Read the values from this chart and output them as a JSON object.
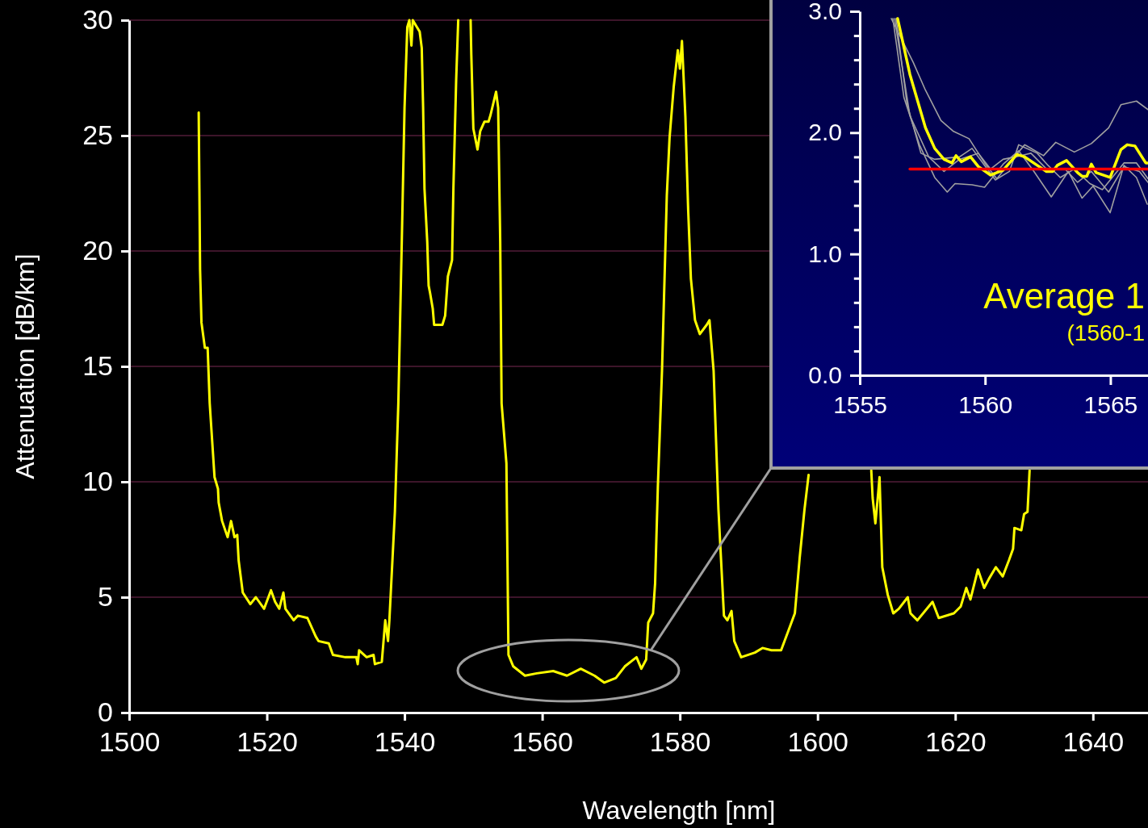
{
  "chart_data": [
    {
      "type": "line",
      "xlabel": "Wavelength [nm]",
      "ylabel": "Attenuation [dB/km]",
      "xlim": [
        1500,
        1648
      ],
      "ylim": [
        0,
        30
      ],
      "xticks": [
        1500,
        1520,
        1540,
        1560,
        1580,
        1600,
        1620,
        1640
      ],
      "yticks": [
        0,
        5,
        10,
        15,
        20,
        25,
        30
      ],
      "grid": "y",
      "x": [
        1510.1,
        1510.2,
        1510.3,
        1510.5,
        1511.0,
        1511.4,
        1511.7,
        1512.4,
        1512.9,
        1513.0,
        1513.5,
        1514.3,
        1514.8,
        1515.3,
        1515.7,
        1515.9,
        1516.5,
        1517.6,
        1518.4,
        1519.6,
        1520.6,
        1521.2,
        1521.8,
        1522.4,
        1522.7,
        1523.9,
        1524.5,
        1525.9,
        1527.1,
        1527.5,
        1529.0,
        1529.6,
        1531.4,
        1533.0,
        1533.2,
        1533.4,
        1534.5,
        1535.5,
        1535.7,
        1536.7,
        1537.2,
        1537.6,
        1537.8,
        1538.6,
        1539.1,
        1539.6,
        1540.0,
        1540.4,
        1540.7,
        1541.0,
        1541.2,
        1541.6,
        1542.2,
        1542.5,
        1542.7,
        1542.9,
        1543.3,
        1543.5,
        1543.7,
        1544.1,
        1544.3,
        1545.5,
        1545.9,
        1546.3,
        1546.9,
        1547.1,
        1547.5,
        1547.8,
        1548.7,
        1549.6,
        1549.7,
        1550.0,
        1550.6,
        1551.0,
        1551.6,
        1552.2,
        1552.5,
        1553.3,
        1553.6,
        1553.9,
        1554.1,
        1554.8,
        1555.1,
        1555.8,
        1557.5,
        1559.2,
        1561.6,
        1563.6,
        1565.6,
        1567.6,
        1569.0,
        1570.7,
        1572.0,
        1573.7,
        1574.4,
        1575.1,
        1575.4,
        1576.1,
        1576.4,
        1576.8,
        1577.4,
        1578.1,
        1578.5,
        1579.1,
        1579.7,
        1580.0,
        1580.3,
        1580.8,
        1581.2,
        1581.6,
        1582.2,
        1582.9,
        1583.9,
        1584.3,
        1584.9,
        1585.6,
        1586.4,
        1586.9,
        1587.5,
        1587.9,
        1588.9,
        1590.9,
        1592.0,
        1593.3,
        1594.7,
        1595.7,
        1596.7,
        1597.4,
        1598.1,
        1598.7,
        1603.0,
        1607.8,
        1608.0,
        1608.4,
        1608.8,
        1609.0,
        1609.4,
        1610.2,
        1611.0,
        1611.8,
        1613.1,
        1613.5,
        1614.5,
        1616.7,
        1617.6,
        1619.8,
        1620.8,
        1621.6,
        1622.2,
        1623.3,
        1624.2,
        1624.9,
        1625.9,
        1626.9,
        1627.8,
        1628.4,
        1628.6,
        1629.6,
        1630.0,
        1630.5,
        1630.8
      ],
      "series": [
        {
          "color": "#ffff00",
          "values": [
            26.0,
            22.7,
            19.2,
            16.9,
            15.8,
            15.8,
            13.4,
            10.2,
            9.7,
            9.1,
            8.3,
            7.6,
            8.3,
            7.6,
            7.7,
            6.6,
            5.2,
            4.7,
            5.0,
            4.5,
            5.3,
            4.8,
            4.5,
            5.2,
            4.5,
            4.0,
            4.2,
            4.1,
            3.3,
            3.1,
            3.0,
            2.5,
            2.4,
            2.4,
            2.1,
            2.7,
            2.4,
            2.5,
            2.1,
            2.2,
            4.0,
            3.1,
            4.0,
            8.7,
            13.4,
            20.4,
            26.2,
            29.7,
            30,
            28.9,
            30,
            29.8,
            29.5,
            28.8,
            26.2,
            22.7,
            20.4,
            18.5,
            18.2,
            17.5,
            16.8,
            16.8,
            17.2,
            18.9,
            19.6,
            22.7,
            27.4,
            30,
            null,
            30,
            28.5,
            25.3,
            24.4,
            25.2,
            25.6,
            25.6,
            25.9,
            26.9,
            26.2,
            20.4,
            13.4,
            10.8,
            2.5,
            2.0,
            1.6,
            1.7,
            1.8,
            1.6,
            1.9,
            1.6,
            1.3,
            1.5,
            2.0,
            2.4,
            1.9,
            2.3,
            3.9,
            4.3,
            5.6,
            9.8,
            14.8,
            22.4,
            24.9,
            27.1,
            28.7,
            27.9,
            29.1,
            25.8,
            21.8,
            18.8,
            17.0,
            16.4,
            16.8,
            17.0,
            14.8,
            8.8,
            4.2,
            4.0,
            4.4,
            3.1,
            2.4,
            2.6,
            2.8,
            2.7,
            2.7,
            3.5,
            4.3,
            6.7,
            8.8,
            10.3,
            null,
            10.5,
            9.3,
            8.2,
            9.5,
            10.2,
            6.3,
            5.1,
            4.3,
            4.5,
            5.0,
            4.3,
            4.0,
            4.8,
            4.1,
            4.3,
            4.6,
            5.4,
            4.9,
            6.2,
            5.4,
            5.8,
            6.3,
            5.9,
            6.6,
            7.1,
            8.0,
            7.9,
            8.6,
            8.7,
            10.5
          ]
        }
      ]
    },
    {
      "type": "line",
      "xlim": [
        1555,
        1566.5
      ],
      "ylim": [
        0,
        3
      ],
      "xticks": [
        1555,
        1560,
        1565
      ],
      "yticks": [
        {
          "value": 0,
          "label": "0.0"
        },
        {
          "value": 0.2,
          "label": null
        },
        {
          "value": 0.4,
          "label": null
        },
        {
          "value": 0.6,
          "label": null
        },
        {
          "value": 0.8,
          "label": null
        },
        {
          "value": 1,
          "label": "1.0"
        },
        {
          "value": 1.2,
          "label": null
        },
        {
          "value": 1.4,
          "label": null
        },
        {
          "value": 1.6,
          "label": null
        },
        {
          "value": 1.8,
          "label": null
        },
        {
          "value": 2,
          "label": "2.0"
        },
        {
          "value": 2.2,
          "label": null
        },
        {
          "value": 2.4,
          "label": null
        },
        {
          "value": 2.6,
          "label": null
        },
        {
          "value": 2.8,
          "label": null
        },
        {
          "value": 3,
          "label": "3.0"
        }
      ],
      "annotations": [
        "Average 1",
        "(1560-1"
      ],
      "series": [
        {
          "color": "#a0a0a0",
          "x": [
            1556.26,
            1557.13,
            1557.62,
            1558.24,
            1558.74,
            1559.36,
            1559.98,
            1560.47,
            1560.97,
            1561.58,
            1562.33,
            1562.82,
            1563.56,
            1564.24,
            1564.93,
            1565.42,
            1566.04,
            1566.5
          ],
          "values": [
            2.94,
            2.58,
            2.35,
            2.1,
            2.01,
            1.95,
            1.75,
            1.62,
            1.75,
            1.9,
            1.81,
            1.92,
            1.84,
            1.91,
            2.04,
            2.23,
            2.26,
            2.19
          ]
        },
        {
          "color": "#a0a0a0",
          "x": [
            1556.32,
            1556.76,
            1557.38,
            1557.99,
            1558.49,
            1558.8,
            1559.48,
            1559.98,
            1560.72,
            1561.34,
            1561.95,
            1562.64,
            1563.32,
            1563.87,
            1564.31,
            1564.99,
            1565.54,
            1566.04,
            1566.47
          ],
          "values": [
            2.94,
            2.29,
            1.9,
            1.63,
            1.51,
            1.58,
            1.57,
            1.55,
            1.74,
            1.85,
            1.68,
            1.47,
            1.68,
            1.46,
            1.56,
            1.34,
            1.73,
            1.63,
            1.41
          ]
        },
        {
          "color": "#a0a0a0",
          "x": [
            1556.45,
            1556.88,
            1557.44,
            1557.99,
            1558.98,
            1559.48,
            1559.98,
            1560.41,
            1560.97,
            1561.34,
            1562.08,
            1562.51,
            1563.0,
            1563.56,
            1564.18,
            1564.68,
            1565.54,
            1566.04,
            1566.5
          ],
          "values": [
            2.94,
            2.24,
            1.83,
            1.78,
            1.8,
            1.87,
            1.73,
            1.61,
            1.68,
            1.9,
            1.83,
            1.73,
            1.63,
            1.7,
            1.58,
            1.53,
            1.75,
            1.75,
            1.62
          ]
        },
        {
          "color": "#a0a0a0",
          "x": [
            1556.39,
            1557.0,
            1557.75,
            1558.36,
            1558.98,
            1559.73,
            1560.22,
            1560.72,
            1561.21,
            1561.83,
            1562.45,
            1563.19,
            1563.69,
            1564.24,
            1564.93,
            1565.54,
            1566.16,
            1566.5
          ],
          "values": [
            2.94,
            2.14,
            1.8,
            1.68,
            1.78,
            1.83,
            1.7,
            1.78,
            1.8,
            1.83,
            1.7,
            1.7,
            1.59,
            1.68,
            1.51,
            1.72,
            1.68,
            1.59
          ]
        },
        {
          "color": "#ffff00",
          "x": [
            1556.51,
            1557.0,
            1557.62,
            1557.99,
            1558.36,
            1558.68,
            1558.84,
            1559.05,
            1559.42,
            1559.73,
            1560.22,
            1560.72,
            1561.27,
            1561.58,
            1562.08,
            1562.45,
            1562.7,
            1562.88,
            1563.25,
            1563.69,
            1563.87,
            1564.06,
            1564.24,
            1564.43,
            1564.99,
            1565.42,
            1565.67,
            1565.98,
            1566.41,
            1566.5
          ],
          "values": [
            2.94,
            2.48,
            2.04,
            1.87,
            1.78,
            1.75,
            1.81,
            1.76,
            1.8,
            1.72,
            1.65,
            1.69,
            1.82,
            1.8,
            1.73,
            1.68,
            1.68,
            1.73,
            1.77,
            1.67,
            1.64,
            1.64,
            1.74,
            1.67,
            1.63,
            1.86,
            1.9,
            1.89,
            1.75,
            1.75
          ]
        },
        {
          "color": "#ff0000",
          "x": [
            1557.0,
            1566.5
          ],
          "values": [
            1.7,
            1.7
          ]
        }
      ]
    }
  ]
}
